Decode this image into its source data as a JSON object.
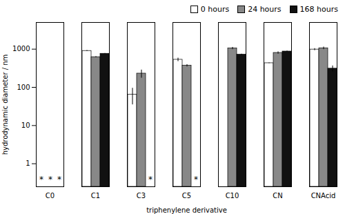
{
  "chart_data": {
    "type": "bar",
    "categories": [
      "C0",
      "C1",
      "C3",
      "C5",
      "C10",
      "CN",
      "CNAcid"
    ],
    "series": [
      {
        "name": "0 hours",
        "color": "white",
        "values": [
          null,
          900,
          65,
          530,
          null,
          430,
          980
        ],
        "errors": [
          null,
          25,
          30,
          55,
          null,
          8,
          60
        ]
      },
      {
        "name": "24 hours",
        "color": "#888888",
        "values": [
          null,
          620,
          230,
          370,
          1050,
          800,
          1060
        ],
        "errors": [
          null,
          20,
          55,
          25,
          70,
          55,
          80
        ]
      },
      {
        "name": "168 hours",
        "color": "#111111",
        "values": [
          null,
          760,
          null,
          null,
          720,
          870,
          310
        ],
        "errors": [
          null,
          15,
          null,
          null,
          25,
          25,
          55
        ]
      }
    ],
    "annotations": [
      {
        "text": "*",
        "category": "C0",
        "series": "0 hours"
      },
      {
        "text": "*",
        "category": "C0",
        "series": "24 hours"
      },
      {
        "text": "*",
        "category": "C0",
        "series": "168 hours"
      },
      {
        "text": "*",
        "category": "C3",
        "series": "168 hours"
      },
      {
        "text": "*",
        "category": "C5",
        "series": "168 hours"
      }
    ],
    "xlabel": "triphenylene derivative",
    "ylabel": "hydrodynamic diameter / nm",
    "ylim": [
      0.25,
      5000
    ],
    "yticks": [
      1,
      10,
      100,
      1000
    ],
    "log": "y",
    "grid": false,
    "legend": "upper right"
  }
}
